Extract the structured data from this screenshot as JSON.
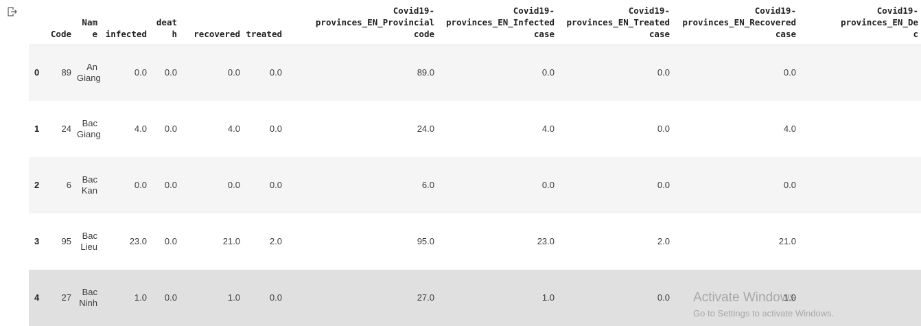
{
  "columns": [
    "",
    "Code",
    "Name",
    "infected",
    "death",
    "recovered",
    "treated",
    "Covid19-\nprovinces_EN_Provincial\ncode",
    "Covid19-\nprovinces_EN_Infected\ncase",
    "Covid19-\nprovinces_EN_Treated\ncase",
    "Covid19-\nprovinces_EN_Recovered\ncase",
    "Covid19-\nprovinces_EN_De\nc"
  ],
  "rows": [
    {
      "index": "0",
      "code": "89",
      "name": "An Giang",
      "infected": "0.0",
      "death": "0.0",
      "recovered": "0.0",
      "treated": "0.0",
      "prov_code": "89.0",
      "infected_case": "0.0",
      "treated_case": "0.0",
      "recovered_case": "0.0",
      "death_case": ""
    },
    {
      "index": "1",
      "code": "24",
      "name": "Bac Giang",
      "infected": "4.0",
      "death": "0.0",
      "recovered": "4.0",
      "treated": "0.0",
      "prov_code": "24.0",
      "infected_case": "4.0",
      "treated_case": "0.0",
      "recovered_case": "4.0",
      "death_case": ""
    },
    {
      "index": "2",
      "code": "6",
      "name": "Bac Kan",
      "infected": "0.0",
      "death": "0.0",
      "recovered": "0.0",
      "treated": "0.0",
      "prov_code": "6.0",
      "infected_case": "0.0",
      "treated_case": "0.0",
      "recovered_case": "0.0",
      "death_case": ""
    },
    {
      "index": "3",
      "code": "95",
      "name": "Bac Lieu",
      "infected": "23.0",
      "death": "0.0",
      "recovered": "21.0",
      "treated": "2.0",
      "prov_code": "95.0",
      "infected_case": "23.0",
      "treated_case": "2.0",
      "recovered_case": "21.0",
      "death_case": ""
    },
    {
      "index": "4",
      "code": "27",
      "name": "Bac Ninh",
      "infected": "1.0",
      "death": "0.0",
      "recovered": "1.0",
      "treated": "0.0",
      "prov_code": "27.0",
      "infected_case": "1.0",
      "treated_case": "0.0",
      "recovered_case": "1.0",
      "death_case": ""
    }
  ],
  "watermark": {
    "title": "Activate Windows",
    "subtitle": "Go to Settings to activate Windows."
  },
  "icons": {
    "output": "output-redirect-icon"
  }
}
